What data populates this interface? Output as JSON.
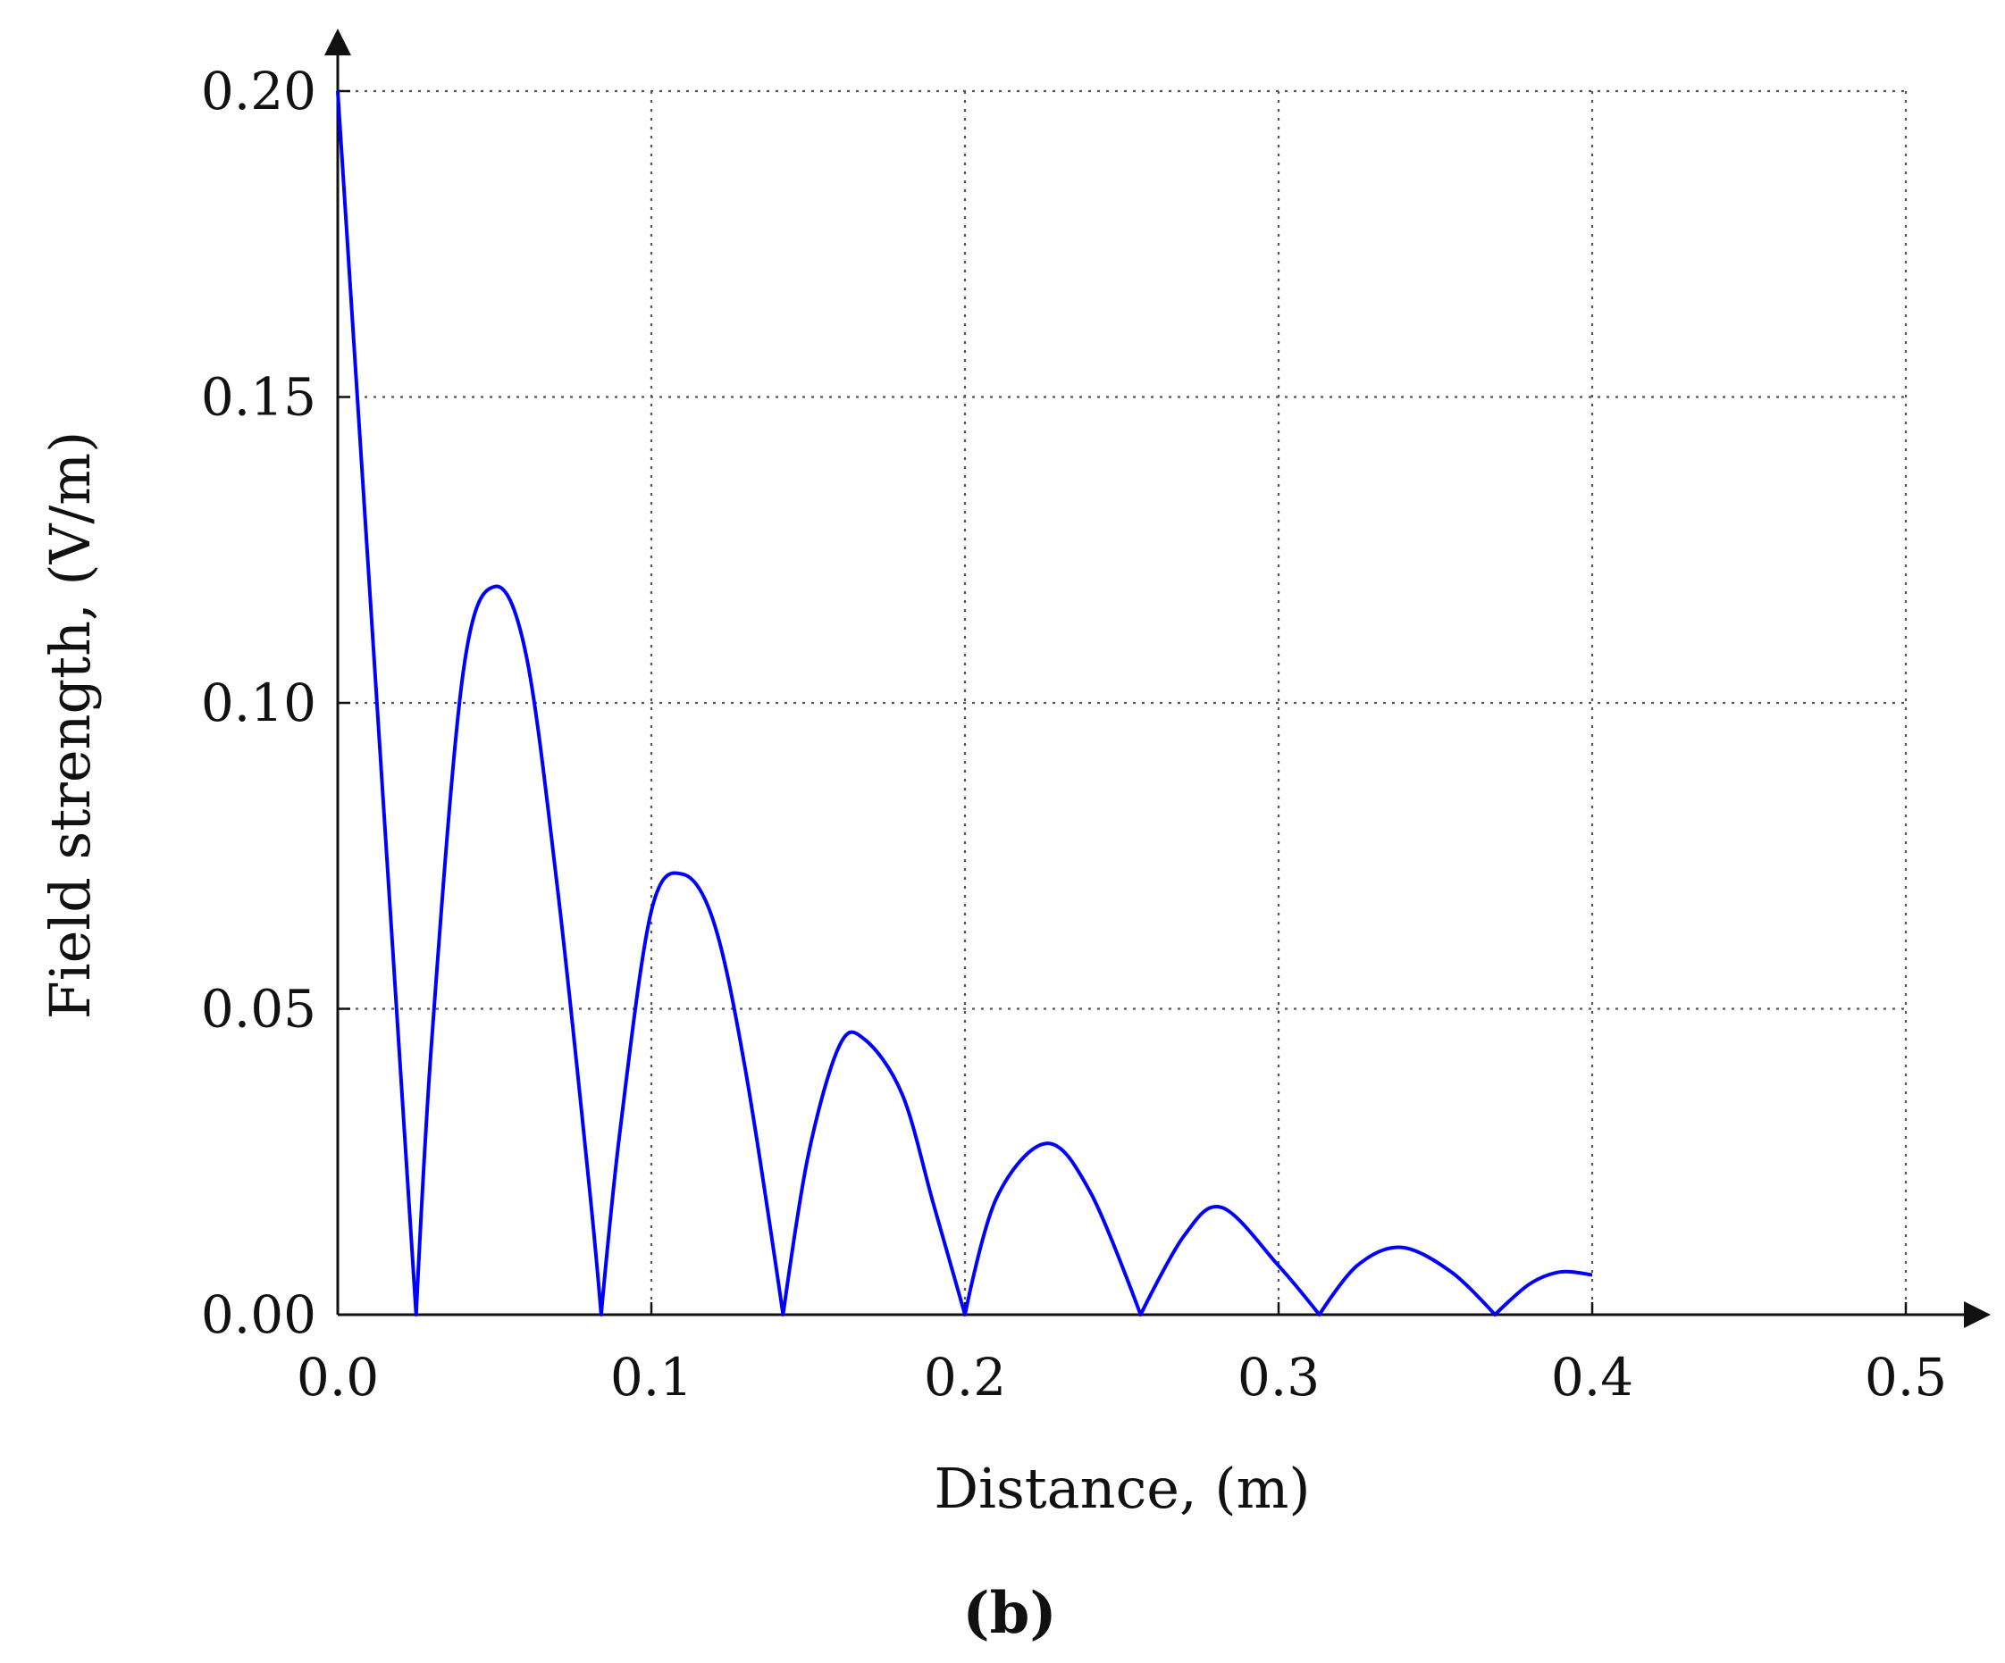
{
  "chart_data": {
    "type": "line",
    "panel_label": "(b)",
    "xlabel": "Distance, (m)",
    "ylabel": "Field strength, (V/m)",
    "xlim": [
      0,
      0.5
    ],
    "ylim": [
      0,
      0.2
    ],
    "xticks": [
      "0.0",
      "0.1",
      "0.2",
      "0.3",
      "0.4",
      "0.5"
    ],
    "yticks": [
      "0.00",
      "0.05",
      "0.10",
      "0.15",
      "0.20"
    ],
    "grid": true,
    "grid_style": "dotted",
    "line_color": "#0000ff",
    "series": [
      {
        "x": [
          0.0,
          0.01,
          0.02,
          0.025,
          0.03,
          0.04,
          0.05,
          0.06,
          0.07,
          0.08,
          0.084,
          0.09,
          0.1,
          0.11,
          0.12,
          0.13,
          0.142,
          0.15,
          0.16,
          0.168,
          0.18,
          0.19,
          0.2,
          0.21,
          0.226,
          0.24,
          0.256,
          0.27,
          0.282,
          0.3,
          0.313,
          0.325,
          0.339,
          0.355,
          0.369,
          0.38,
          0.39,
          0.4
        ],
        "y": [
          0.2,
          0.12,
          0.04,
          0.0,
          0.045,
          0.105,
          0.119,
          0.108,
          0.07,
          0.022,
          0.0,
          0.03,
          0.066,
          0.072,
          0.064,
          0.04,
          0.0,
          0.026,
          0.044,
          0.045,
          0.036,
          0.018,
          0.0,
          0.019,
          0.028,
          0.02,
          0.0,
          0.013,
          0.0175,
          0.008,
          0.0,
          0.008,
          0.011,
          0.007,
          0.0,
          0.005,
          0.007,
          0.0065
        ]
      }
    ]
  }
}
